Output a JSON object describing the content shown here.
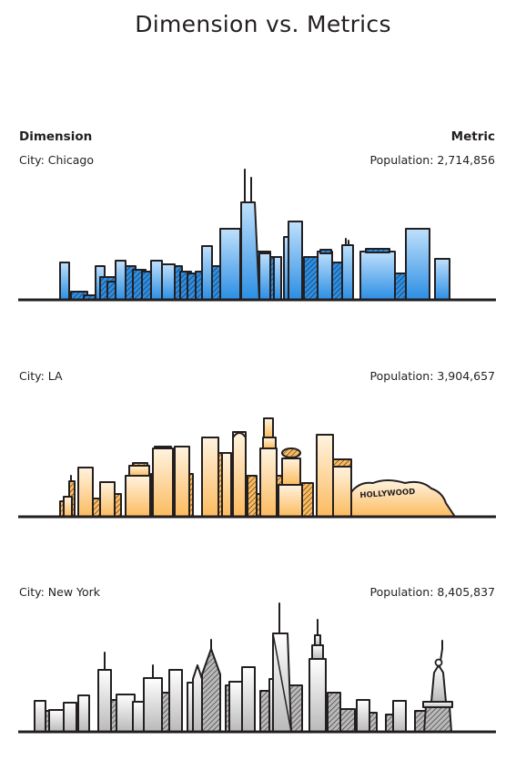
{
  "title": "Dimension vs. Metrics",
  "headers": {
    "dimension": "Dimension",
    "metric": "Metric"
  },
  "rows": [
    {
      "city": "City: Chicago",
      "population": "Population: 2,714,856",
      "theme": "blue",
      "fill_light": "#bfe0fb",
      "fill_dark": "#2b8ee4"
    },
    {
      "city": "City: LA",
      "population": "Population: 3,904,657",
      "theme": "orange",
      "fill_light": "#fff3e0",
      "fill_dark": "#fbbb5e",
      "sign": "HOLLYWOOD"
    },
    {
      "city": "City: New York",
      "population": "Population: 8,405,837",
      "theme": "gray",
      "fill_light": "#ffffff",
      "fill_dark": "#b9b9b9"
    }
  ],
  "colors": {
    "outline": "#231f20",
    "hatch": "#231f20"
  }
}
